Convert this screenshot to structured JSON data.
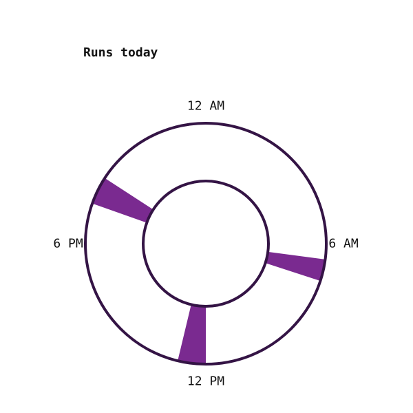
{
  "chart_data": {
    "type": "radial-timeline",
    "title": "Runs today",
    "clock_labels": [
      {
        "text": "12 AM",
        "hour": 0
      },
      {
        "text": "6 AM",
        "hour": 6
      },
      {
        "text": "12 PM",
        "hour": 12
      },
      {
        "text": "6 PM",
        "hour": 18
      }
    ],
    "hour_range": [
      0,
      24
    ],
    "runs": [
      {
        "start_hour": 6.5,
        "end_hour": 7.2
      },
      {
        "start_hour": 12.0,
        "end_hour": 12.9
      },
      {
        "start_hour": 19.3,
        "end_hour": 20.2
      }
    ],
    "colors": {
      "ring": "#341445",
      "run": "#7a2a90"
    }
  }
}
